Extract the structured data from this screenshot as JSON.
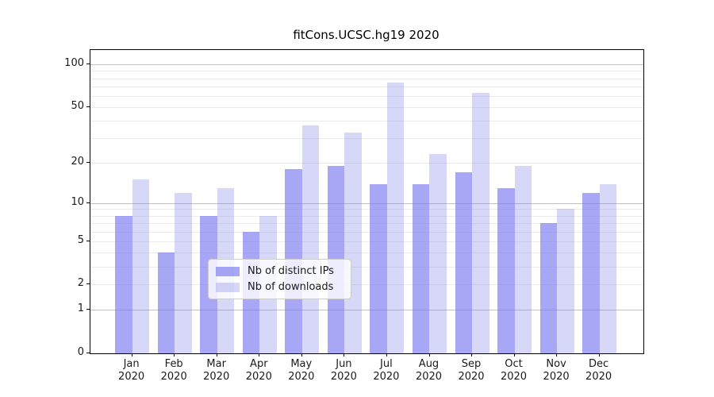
{
  "figure": {
    "title": "fitCons.UCSC.hg19 2020"
  },
  "chart_data": {
    "type": "bar",
    "title": "fitCons.UCSC.hg19 2020",
    "categories": [
      "Jan 2020",
      "Feb 2020",
      "Mar 2020",
      "Apr 2020",
      "May 2020",
      "Jun 2020",
      "Jul 2020",
      "Aug 2020",
      "Sep 2020",
      "Oct 2020",
      "Nov 2020",
      "Dec 2020"
    ],
    "x_tick_month_labels": [
      "Jan",
      "Feb",
      "Mar",
      "Apr",
      "May",
      "Jun",
      "Jul",
      "Aug",
      "Sep",
      "Oct",
      "Nov",
      "Dec"
    ],
    "x_tick_year_label": "2020",
    "series": [
      {
        "name": "Nb of distinct IPs",
        "color": "rgba(120,120,240,0.65)",
        "values": [
          8,
          4,
          8,
          6,
          18,
          19,
          14,
          14,
          17,
          13,
          7,
          12
        ]
      },
      {
        "name": "Nb of downloads",
        "color": "rgba(130,130,230,0.32)",
        "values": [
          15,
          12,
          13,
          8,
          37,
          33,
          75,
          23,
          63,
          19,
          9,
          14
        ]
      }
    ],
    "yscale": "log10(1+x)",
    "ylabel": "",
    "xlabel": "",
    "y_tick_values": [
      0,
      1,
      2,
      5,
      10,
      20,
      50,
      100
    ],
    "ylim": [
      0,
      126
    ],
    "grid": {
      "major_at": [
        1,
        10,
        100
      ],
      "minor_at": [
        2,
        3,
        4,
        5,
        6,
        7,
        8,
        9,
        20,
        30,
        40,
        50,
        60,
        70,
        80,
        90
      ]
    },
    "legend": {
      "position": "inside-bottom-center"
    }
  },
  "style": {
    "grid_major_color": "#c0c0c0",
    "grid_minor_color": "#ebebeb",
    "spine_color": "#000000",
    "legend_border_color": "#cccccc"
  }
}
